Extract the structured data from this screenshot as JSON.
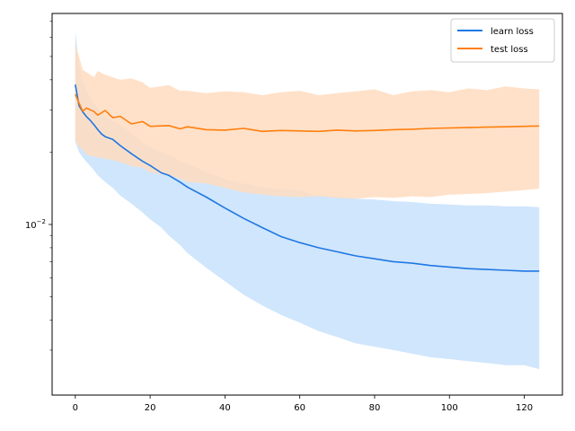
{
  "chart_data": {
    "type": "line",
    "title": "",
    "xlabel": "",
    "ylabel": "",
    "xlim": [
      -6.2,
      130.2
    ],
    "ylim": [
      0.00195,
      0.0755
    ],
    "yscale": "log",
    "grid": false,
    "legend_position": "top-right",
    "x_ticks": [
      0,
      20,
      40,
      60,
      80,
      100,
      120
    ],
    "x_tick_labels": [
      "0",
      "20",
      "40",
      "60",
      "80",
      "100",
      "120"
    ],
    "y_major_ticks": [
      0.01
    ],
    "y_minor_ticks": [
      0.003,
      0.004,
      0.005,
      0.006,
      0.007,
      0.008,
      0.009,
      0.02,
      0.03,
      0.04,
      0.05,
      0.06,
      0.07
    ],
    "y_tick_label": {
      "base": "10",
      "exponent": "−2"
    },
    "series": [
      {
        "name": "learn loss",
        "color": "#1f77e4",
        "fill_color": "#c8e2fb",
        "x": [
          0,
          1,
          2,
          3,
          4,
          5,
          6,
          7,
          8,
          10,
          12,
          15,
          18,
          20,
          23,
          25,
          28,
          30,
          35,
          40,
          45,
          50,
          55,
          60,
          65,
          70,
          75,
          80,
          85,
          90,
          95,
          100,
          105,
          110,
          115,
          120,
          124
        ],
        "values": [
          0.0382,
          0.0312,
          0.0294,
          0.0281,
          0.0271,
          0.026,
          0.0248,
          0.0238,
          0.0232,
          0.0226,
          0.0213,
          0.0197,
          0.0183,
          0.0176,
          0.0164,
          0.016,
          0.015,
          0.0143,
          0.013,
          0.0117,
          0.0106,
          0.0097,
          0.0089,
          0.0084,
          0.008,
          0.0077,
          0.0074,
          0.0072,
          0.007,
          0.0069,
          0.00675,
          0.00665,
          0.00655,
          0.0065,
          0.00645,
          0.0064,
          0.0064
        ],
        "band_upper": [
          0.064,
          0.046,
          0.04,
          0.036,
          0.034,
          0.032,
          0.0305,
          0.029,
          0.028,
          0.027,
          0.026,
          0.024,
          0.022,
          0.021,
          0.02,
          0.0195,
          0.0185,
          0.018,
          0.0165,
          0.0155,
          0.0148,
          0.0143,
          0.014,
          0.0138,
          0.0132,
          0.013,
          0.0128,
          0.0127,
          0.0125,
          0.0124,
          0.0122,
          0.0121,
          0.012,
          0.012,
          0.0119,
          0.0119,
          0.0118
        ],
        "band_lower": [
          0.022,
          0.02,
          0.019,
          0.0182,
          0.0175,
          0.0168,
          0.016,
          0.0155,
          0.015,
          0.0142,
          0.0132,
          0.0122,
          0.0112,
          0.0105,
          0.0097,
          0.009,
          0.0082,
          0.0076,
          0.0066,
          0.0058,
          0.0051,
          0.0046,
          0.0042,
          0.0039,
          0.0036,
          0.0034,
          0.0032,
          0.0031,
          0.003,
          0.0029,
          0.0028,
          0.00275,
          0.0027,
          0.00265,
          0.0026,
          0.0026,
          0.0025
        ]
      },
      {
        "name": "test loss",
        "color": "#ff7f0e",
        "fill_color": "#ffdcc0",
        "x": [
          0,
          1,
          2,
          3,
          5,
          6,
          8,
          10,
          12,
          15,
          18,
          20,
          25,
          28,
          30,
          35,
          40,
          45,
          50,
          55,
          60,
          65,
          70,
          75,
          80,
          85,
          90,
          95,
          100,
          105,
          110,
          115,
          120,
          124
        ],
        "values": [
          0.0348,
          0.032,
          0.0296,
          0.0305,
          0.0295,
          0.0285,
          0.0298,
          0.0278,
          0.0282,
          0.0262,
          0.0268,
          0.0256,
          0.0258,
          0.025,
          0.0255,
          0.0248,
          0.0247,
          0.0251,
          0.0244,
          0.0246,
          0.0245,
          0.0244,
          0.0247,
          0.0245,
          0.0246,
          0.0248,
          0.0249,
          0.0251,
          0.0252,
          0.0253,
          0.0254,
          0.0255,
          0.0256,
          0.0257
        ],
        "band_upper": [
          0.056,
          0.05,
          0.044,
          0.043,
          0.041,
          0.0435,
          0.042,
          0.041,
          0.04,
          0.0405,
          0.039,
          0.037,
          0.038,
          0.036,
          0.036,
          0.0352,
          0.0358,
          0.0355,
          0.0345,
          0.0355,
          0.036,
          0.0345,
          0.0352,
          0.0358,
          0.0365,
          0.0345,
          0.0358,
          0.0362,
          0.0355,
          0.0368,
          0.0362,
          0.0375,
          0.0368,
          0.0365
        ],
        "band_lower": [
          0.0222,
          0.021,
          0.0205,
          0.0195,
          0.0192,
          0.019,
          0.0188,
          0.0185,
          0.0182,
          0.0175,
          0.0172,
          0.0165,
          0.016,
          0.0155,
          0.015,
          0.0148,
          0.0142,
          0.0136,
          0.0133,
          0.0131,
          0.013,
          0.0131,
          0.0129,
          0.0128,
          0.013,
          0.0129,
          0.0131,
          0.013,
          0.0133,
          0.0134,
          0.0135,
          0.0137,
          0.0139,
          0.0141
        ]
      }
    ]
  }
}
